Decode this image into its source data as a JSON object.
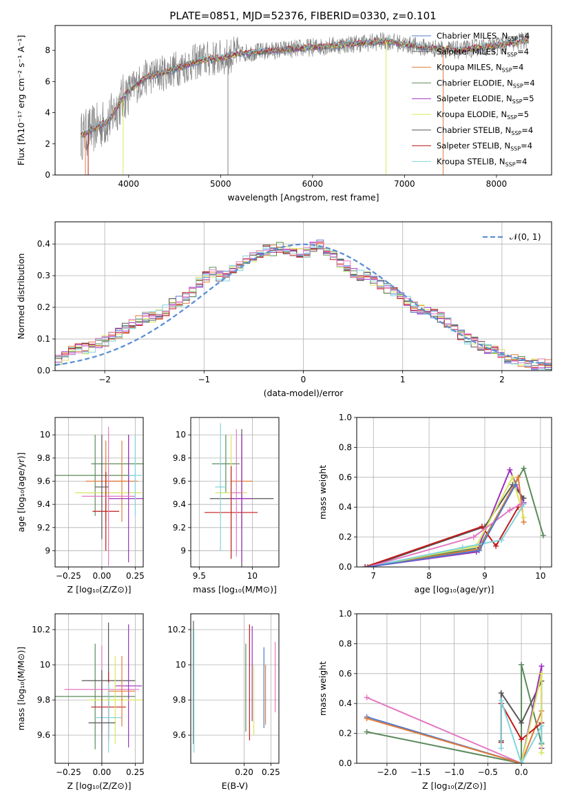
{
  "figure_title": "PLATE=0851, MJD=52376, FIBERID=0330, z=0.101",
  "colors": {
    "chabrier_miles": "#4f79c8",
    "salpeter_miles": "#6f6f6f",
    "kroupa_miles": "#e07b39",
    "chabrier_elodie": "#5a8a5a",
    "salpeter_elodie": "#9b2fc0",
    "kroupa_elodie": "#d8e65a",
    "chabrier_stelib": "#555555",
    "salpeter_stelib": "#c21a1a",
    "kroupa_stelib": "#7fd4dc",
    "pink": "#e377c2",
    "normal_curve": "#5b8fd6"
  },
  "chart_data": [
    {
      "id": "spectrum",
      "type": "line",
      "title": "PLATE=0851, MJD=52376, FIBERID=0330, z=0.101",
      "xlabel": "wavelength [Angstrom, rest frame]",
      "ylabel": "Flux [fλ10⁻¹⁷ erg cm⁻² s⁻¹ A⁻¹]",
      "xlim": [
        3200,
        8600
      ],
      "ylim": [
        0,
        9.6
      ],
      "xticks": [
        4000,
        5000,
        6000,
        7000,
        8000
      ],
      "yticks": [
        0,
        2,
        4,
        6,
        8
      ],
      "legend_position": "right",
      "legend": [
        {
          "label": "Chabrier MILES, N",
          "sub": "SSP",
          "tail": "=4",
          "color": "#4f79c8"
        },
        {
          "label": "Salpeter MILES, N",
          "sub": "SSP",
          "tail": "=4",
          "color": "#6f6f6f"
        },
        {
          "label": "Kroupa MILES, N",
          "sub": "SSP",
          "tail": "=4",
          "color": "#e07b39"
        },
        {
          "label": "Chabrier ELODIE, N",
          "sub": "SSP",
          "tail": "=4",
          "color": "#5a8a5a"
        },
        {
          "label": "Salpeter ELODIE, N",
          "sub": "SSP",
          "tail": "=5",
          "color": "#9b2fc0"
        },
        {
          "label": "Kroupa ELODIE, N",
          "sub": "SSP",
          "tail": "=5",
          "color": "#d8e65a"
        },
        {
          "label": "Chabrier STELIB, N",
          "sub": "SSP",
          "tail": "=4",
          "color": "#555555"
        },
        {
          "label": "Salpeter STELIB, N",
          "sub": "SSP",
          "tail": "=4",
          "color": "#c21a1a"
        },
        {
          "label": "Kroupa STELIB, N",
          "sub": "SSP",
          "tail": "=4",
          "color": "#7fd4dc"
        }
      ],
      "continuum": {
        "x": [
          3480,
          3600,
          3700,
          3800,
          3900,
          4000,
          4200,
          4400,
          4600,
          4800,
          5000,
          5200,
          5400,
          5600,
          5800,
          6000,
          6200,
          6400,
          6600,
          6800,
          7000,
          7200,
          7400,
          7600,
          7800,
          8000,
          8200,
          8350
        ],
        "y": [
          2.5,
          2.9,
          3.2,
          3.6,
          4.6,
          5.4,
          6.3,
          6.6,
          7.0,
          7.4,
          7.5,
          7.8,
          7.9,
          8.0,
          8.1,
          8.2,
          8.3,
          8.4,
          8.5,
          8.6,
          8.4,
          8.2,
          8.1,
          8.0,
          8.2,
          8.3,
          8.5,
          8.7
        ]
      }
    },
    {
      "id": "residuals",
      "type": "histogram",
      "xlabel": "(data-model)/error",
      "ylabel": "Normed distribution",
      "xlim": [
        -2.5,
        2.5
      ],
      "ylim": [
        0,
        0.47
      ],
      "xticks": [
        -2,
        -1,
        0,
        1,
        2
      ],
      "yticks": [
        0.0,
        0.1,
        0.2,
        0.3,
        0.4
      ],
      "grid": true,
      "legend_position": "top-right",
      "legend": [
        {
          "label": "𝒩(0, 1)",
          "color": "#5b8fd6"
        }
      ],
      "bin_width": 0.1,
      "bins_start": -2.5,
      "histogram_values": [
        0.035,
        0.045,
        0.06,
        0.07,
        0.07,
        0.075,
        0.085,
        0.095,
        0.105,
        0.12,
        0.135,
        0.15,
        0.16,
        0.17,
        0.17,
        0.175,
        0.19,
        0.21,
        0.22,
        0.23,
        0.25,
        0.28,
        0.295,
        0.31,
        0.3,
        0.3,
        0.32,
        0.33,
        0.35,
        0.36,
        0.37,
        0.38,
        0.38,
        0.39,
        0.38,
        0.375,
        0.37,
        0.375,
        0.39,
        0.4,
        0.38,
        0.365,
        0.34,
        0.33,
        0.31,
        0.3,
        0.3,
        0.28,
        0.27,
        0.26,
        0.25,
        0.24,
        0.22,
        0.2,
        0.19,
        0.19,
        0.18,
        0.17,
        0.15,
        0.13,
        0.115,
        0.1,
        0.09,
        0.08,
        0.07,
        0.06,
        0.05,
        0.04,
        0.035,
        0.03,
        0.025,
        0.02,
        0.02,
        0.02
      ]
    },
    {
      "id": "age_vs_Z",
      "type": "scatter",
      "xlabel": "Z [log₁₀(Z/Z⊙)]",
      "ylabel": "age  [log₁₀(age/yr)]",
      "xlim": [
        -0.35,
        0.31
      ],
      "ylim": [
        8.86,
        10.15
      ],
      "xticks": [
        -0.25,
        0.0,
        0.25
      ],
      "xticklabels": [
        "−0.25",
        "0.00",
        "0.25"
      ],
      "yticks": [
        9.0,
        9.2,
        9.4,
        9.6,
        9.8,
        10.0
      ],
      "grid": true,
      "points": [
        {
          "x": -0.05,
          "y": 9.65,
          "xerr": 0.3,
          "yerr": 0.35,
          "color": "#5a8a5a"
        },
        {
          "x": 0.2,
          "y": 9.75,
          "xerr": 0.28,
          "yerr": 0.25,
          "color": "#5a8a5a"
        },
        {
          "x": 0.03,
          "y": 9.6,
          "xerr": 0.15,
          "yerr": 0.35,
          "color": "#e07b39"
        },
        {
          "x": 0.15,
          "y": 9.6,
          "xerr": 0.12,
          "yerr": 0.35,
          "color": "#e07b39"
        },
        {
          "x": 0.05,
          "y": 9.5,
          "xerr": 0.25,
          "yerr": 0.45,
          "color": "#d8e65a"
        },
        {
          "x": 0.2,
          "y": 9.45,
          "xerr": 0.15,
          "yerr": 0.55,
          "color": "#9b2fc0"
        },
        {
          "x": 0.03,
          "y": 9.34,
          "xerr": 0.1,
          "yerr": 0.34,
          "color": "#c21a1a"
        },
        {
          "x": 0.05,
          "y": 9.47,
          "xerr": 0.2,
          "yerr": 0.6,
          "color": "#e377c2"
        },
        {
          "x": 0.0,
          "y": 9.55,
          "xerr": 0.05,
          "yerr": 0.45,
          "color": "#555555"
        },
        {
          "x": 0.25,
          "y": 9.65,
          "xerr": 0.05,
          "yerr": 0.35,
          "color": "#7fd4dc"
        }
      ]
    },
    {
      "id": "age_vs_mass",
      "type": "scatter",
      "xlabel": "mass [log₁₀(M/M⊙)]",
      "xlim": [
        9.42,
        10.25
      ],
      "ylim": [
        8.86,
        10.15
      ],
      "xticks": [
        9.5,
        10.0
      ],
      "yticks": [
        9.0,
        9.2,
        9.4,
        9.6,
        9.8,
        10.0
      ],
      "grid": true,
      "points": [
        {
          "x": 9.75,
          "y": 9.75,
          "xerr": 0.13,
          "yerr": 0.25,
          "color": "#5a8a5a"
        },
        {
          "x": 9.9,
          "y": 9.6,
          "xerr": 0.1,
          "yerr": 0.4,
          "color": "#e07b39"
        },
        {
          "x": 9.8,
          "y": 9.5,
          "xerr": 0.15,
          "yerr": 0.5,
          "color": "#d8e65a"
        },
        {
          "x": 9.9,
          "y": 9.45,
          "xerr": 0.3,
          "yerr": 0.6,
          "color": "#555555"
        },
        {
          "x": 9.8,
          "y": 9.33,
          "xerr": 0.25,
          "yerr": 0.4,
          "color": "#c21a1a"
        },
        {
          "x": 9.9,
          "y": 9.45,
          "xerr": 0.1,
          "yerr": 0.55,
          "color": "#9b2fc0"
        },
        {
          "x": 9.7,
          "y": 9.55,
          "xerr": 0.05,
          "yerr": 0.55,
          "color": "#7fd4dc"
        },
        {
          "x": 9.85,
          "y": 9.5,
          "xerr": 0.05,
          "yerr": 0.55,
          "color": "#e377c2"
        }
      ]
    },
    {
      "id": "mass_weight_vs_age",
      "type": "line",
      "xlabel": "age  [log₁₀(age/yr)]",
      "ylabel": "mass weight",
      "xlim": [
        6.7,
        10.2
      ],
      "ylim": [
        0,
        1.0
      ],
      "xticks": [
        7,
        8,
        9,
        10
      ],
      "yticks": [
        0.0,
        0.2,
        0.4,
        0.6,
        0.8,
        1.0
      ],
      "grid": true,
      "series": [
        {
          "color": "#5a8a5a",
          "x": [
            6.9,
            8.9,
            9.7,
            10.05
          ],
          "y": [
            0.0,
            0.13,
            0.66,
            0.21
          ]
        },
        {
          "color": "#9b2fc0",
          "x": [
            6.9,
            8.85,
            9.45,
            9.7
          ],
          "y": [
            0.0,
            0.1,
            0.65,
            0.43
          ]
        },
        {
          "color": "#555555",
          "x": [
            6.9,
            9.0,
            9.5,
            9.7
          ],
          "y": [
            0.0,
            0.27,
            0.55,
            0.46
          ]
        },
        {
          "color": "#c21a1a",
          "x": [
            6.85,
            8.95,
            9.2,
            9.6
          ],
          "y": [
            0.0,
            0.27,
            0.14,
            0.4
          ]
        },
        {
          "color": "#e07b39",
          "x": [
            6.9,
            8.9,
            9.6,
            9.7
          ],
          "y": [
            0.0,
            0.12,
            0.6,
            0.3
          ]
        },
        {
          "color": "#d8e65a",
          "x": [
            6.9,
            8.85,
            9.5,
            9.7
          ],
          "y": [
            0.0,
            0.14,
            0.6,
            0.33
          ]
        },
        {
          "color": "#7fd4dc",
          "x": [
            6.9,
            8.6,
            9.3,
            9.7
          ],
          "y": [
            0.0,
            0.13,
            0.18,
            0.42
          ]
        },
        {
          "color": "#e377c2",
          "x": [
            6.9,
            8.8,
            9.45,
            9.65
          ],
          "y": [
            0.0,
            0.2,
            0.38,
            0.42
          ]
        },
        {
          "color": "#4f79c8",
          "x": [
            6.9,
            8.9,
            9.55
          ],
          "y": [
            0.0,
            0.11,
            0.55
          ]
        }
      ]
    },
    {
      "id": "mass_vs_Z",
      "type": "scatter",
      "xlabel": "Z [log₁₀(Z/Z⊙)]",
      "ylabel": "mass [log₁₀(M/M⊙)]",
      "xlim": [
        -0.35,
        0.31
      ],
      "ylim": [
        9.44,
        10.29
      ],
      "xticks": [
        -0.25,
        0.0,
        0.25
      ],
      "xticklabels": [
        "−0.25",
        "0.00",
        "0.25"
      ],
      "yticks": [
        9.6,
        9.8,
        10.0,
        10.2
      ],
      "grid": true,
      "points": [
        {
          "x": -0.05,
          "y": 9.82,
          "xerr": 0.3,
          "yerr": 0.3,
          "color": "#5a8a5a"
        },
        {
          "x": 0.05,
          "y": 9.91,
          "xerr": 0.2,
          "yerr": 0.33,
          "color": "#555555"
        },
        {
          "x": 0.05,
          "y": 9.76,
          "xerr": 0.13,
          "yerr": 0.2,
          "color": "#c21a1a"
        },
        {
          "x": 0.0,
          "y": 9.86,
          "xerr": 0.28,
          "yerr": 0.25,
          "color": "#e377c2"
        },
        {
          "x": 0.2,
          "y": 9.88,
          "xerr": 0.1,
          "yerr": 0.35,
          "color": "#9b2fc0"
        },
        {
          "x": 0.1,
          "y": 9.8,
          "xerr": 0.2,
          "yerr": 0.25,
          "color": "#d8e65a"
        },
        {
          "x": 0.05,
          "y": 9.7,
          "xerr": 0.1,
          "yerr": 0.2,
          "color": "#7fd4dc"
        },
        {
          "x": 0.0,
          "y": 9.67,
          "xerr": 0.1,
          "yerr": 0.3,
          "color": "#555555"
        },
        {
          "x": 0.15,
          "y": 9.85,
          "xerr": 0.1,
          "yerr": 0.2,
          "color": "#e07b39"
        }
      ]
    },
    {
      "id": "mass_vs_EBV",
      "type": "scatter",
      "xlabel": "E(B-V)",
      "xlim": [
        0.1,
        0.265
      ],
      "ylim": [
        9.44,
        10.29
      ],
      "xticks": [
        0.2,
        0.25
      ],
      "xticklabels": [
        "0.20",
        "0.25"
      ],
      "yticks": [
        9.6,
        9.8,
        10.0,
        10.2
      ],
      "grid": true,
      "points": [
        {
          "x": 0.105,
          "y": 9.9,
          "xerr": 0,
          "yerr": 0.35,
          "color": "#555555"
        },
        {
          "x": 0.106,
          "y": 9.85,
          "xerr": 0,
          "yerr": 0.35,
          "color": "#7fd4dc"
        },
        {
          "x": 0.203,
          "y": 9.87,
          "xerr": 0,
          "yerr": 0.25,
          "color": "#5a8a5a"
        },
        {
          "x": 0.21,
          "y": 9.9,
          "xerr": 0,
          "yerr": 0.33,
          "color": "#c21a1a"
        },
        {
          "x": 0.215,
          "y": 9.95,
          "xerr": 0,
          "yerr": 0.27,
          "color": "#9b2fc0"
        },
        {
          "x": 0.218,
          "y": 9.8,
          "xerr": 0,
          "yerr": 0.2,
          "color": "#d8e65a"
        },
        {
          "x": 0.237,
          "y": 9.87,
          "xerr": 0,
          "yerr": 0.23,
          "color": "#4f79c8"
        },
        {
          "x": 0.24,
          "y": 9.83,
          "xerr": 0,
          "yerr": 0.17,
          "color": "#e07b39"
        },
        {
          "x": 0.258,
          "y": 9.93,
          "xerr": 0,
          "yerr": 0.2,
          "color": "#e377c2"
        }
      ]
    },
    {
      "id": "mass_weight_vs_Z",
      "type": "line",
      "xlabel": "Z [log₁₀(Z/Z⊙)]",
      "ylabel": "mass weight",
      "xlim": [
        -2.45,
        0.45
      ],
      "ylim": [
        0,
        1.0
      ],
      "xticks": [
        -2.0,
        -1.5,
        -1.0,
        -0.5,
        0.0
      ],
      "xticklabels": [
        "−2.0",
        "−1.5",
        "−1.0",
        "−0.5",
        "0.0"
      ],
      "yticks": [
        0.0,
        0.2,
        0.4,
        0.6,
        0.8,
        1.0
      ],
      "grid": true,
      "series": [
        {
          "color": "#5a8a5a",
          "x": [
            -2.3,
            0.0,
            0.0,
            0.3,
            0.3
          ],
          "y": [
            0.21,
            0.0,
            0.66,
            0.13,
            0.13
          ]
        },
        {
          "color": "#e377c2",
          "x": [
            -2.3,
            0.0
          ],
          "y": [
            0.44,
            0.0
          ]
        },
        {
          "color": "#4f79c8",
          "x": [
            -2.3,
            0.0
          ],
          "y": [
            0.31,
            0.0
          ]
        },
        {
          "color": "#e07b39",
          "x": [
            -2.3,
            0.0,
            0.3
          ],
          "y": [
            0.3,
            0.0,
            0.35
          ]
        },
        {
          "color": "#555555",
          "x": [
            -0.3,
            -0.3,
            0.0,
            0.3,
            0.3
          ],
          "y": [
            0.15,
            0.47,
            0.27,
            0.55,
            0.1
          ]
        },
        {
          "color": "#c21a1a",
          "x": [
            -0.3,
            -0.3,
            0.0,
            0.3,
            0.3
          ],
          "y": [
            0.14,
            0.4,
            0.16,
            0.27,
            0.27
          ]
        },
        {
          "color": "#9b2fc0",
          "x": [
            0.0,
            0.3,
            0.3
          ],
          "y": [
            0.0,
            0.65,
            0.1
          ]
        },
        {
          "color": "#d8e65a",
          "x": [
            0.0,
            0.3,
            0.3
          ],
          "y": [
            0.0,
            0.6,
            0.07
          ]
        },
        {
          "color": "#7fd4dc",
          "x": [
            -0.3,
            -0.3,
            0.0,
            0.3,
            0.3
          ],
          "y": [
            0.1,
            0.42,
            0.0,
            0.25,
            0.14
          ]
        }
      ]
    }
  ]
}
